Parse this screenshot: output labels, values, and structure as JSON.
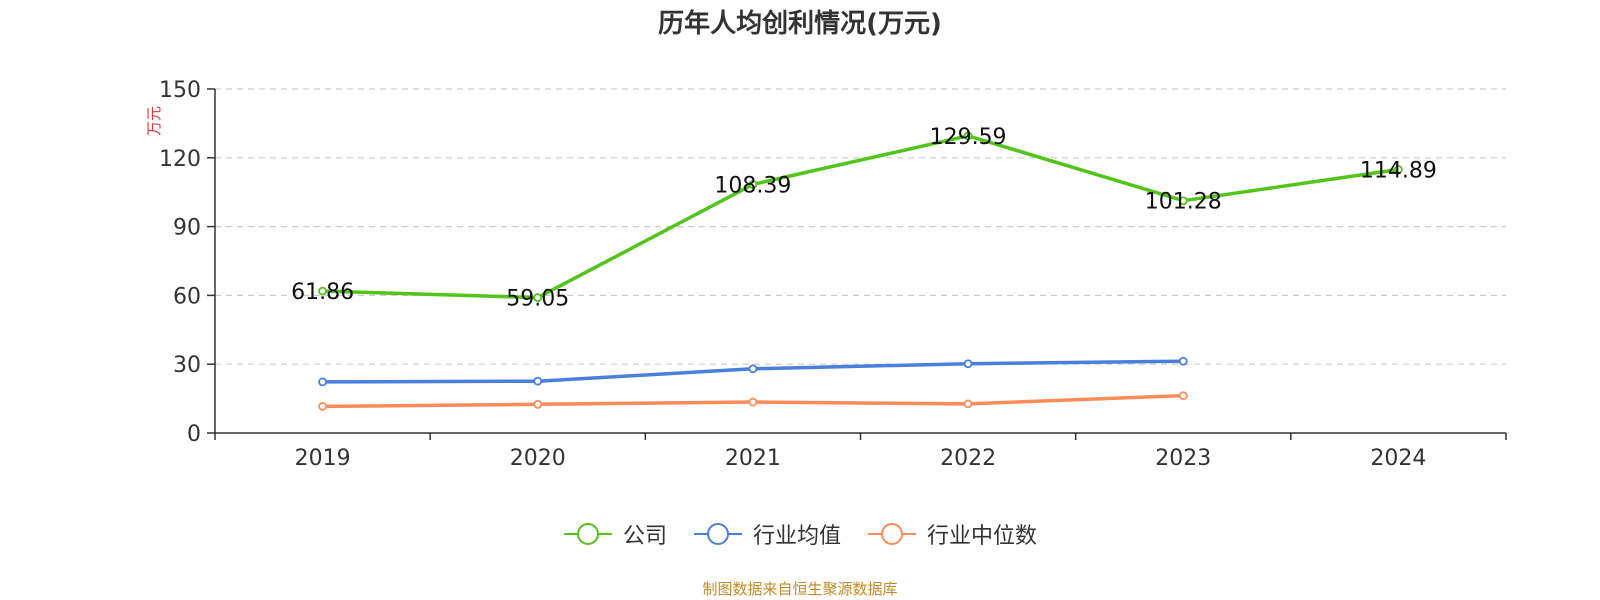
{
  "chart_data": {
    "type": "line",
    "title": "历年人均创利情况(万元)",
    "ylabel": "万元",
    "xlabel": "",
    "categories": [
      "2019",
      "2020",
      "2021",
      "2022",
      "2023",
      "2024"
    ],
    "ylim": [
      0,
      150
    ],
    "yticks": [
      0,
      30,
      60,
      90,
      120,
      150
    ],
    "grid": true,
    "legend_position": "bottom",
    "series": [
      {
        "name": "公司",
        "color": "#52c41a",
        "values": [
          61.86,
          59.05,
          108.39,
          129.59,
          101.28,
          114.89
        ],
        "labels": [
          "61.86",
          "59.05",
          "108.39",
          "129.59",
          "101.28",
          "114.89"
        ],
        "show_labels": true
      },
      {
        "name": "行业均值",
        "color": "#4a7fdb",
        "values": [
          22.3,
          22.6,
          28.0,
          30.2,
          31.3,
          null
        ],
        "show_labels": false
      },
      {
        "name": "行业中位数",
        "color": "#fa8c5a",
        "values": [
          11.6,
          12.5,
          13.5,
          12.7,
          16.3,
          null
        ],
        "show_labels": false
      }
    ]
  },
  "source_note": "制图数据来自恒生聚源数据库"
}
